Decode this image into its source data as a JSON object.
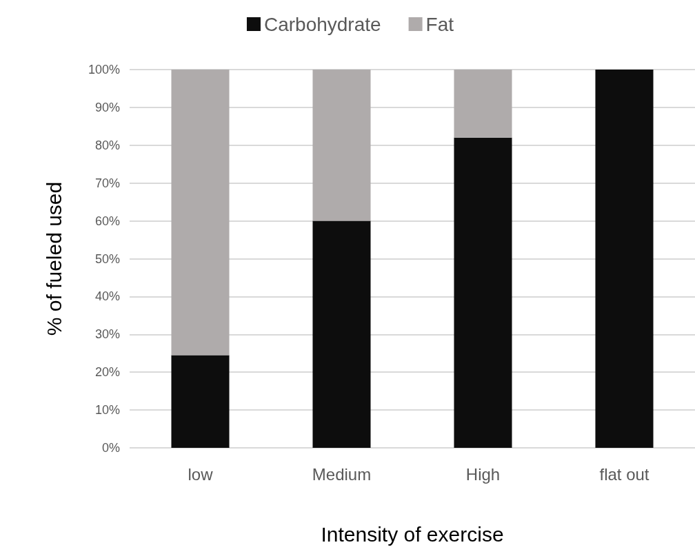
{
  "chart_data": {
    "type": "bar",
    "stacked": true,
    "xlabel": "Intensity of exercise",
    "ylabel": "% of fueled used",
    "categories": [
      "low",
      "Medium",
      "High",
      "flat out"
    ],
    "series": [
      {
        "name": "Carbohydrate",
        "color": "#0d0d0d",
        "values": [
          24.5,
          60,
          82,
          100
        ]
      },
      {
        "name": "Fat",
        "color": "#afabab",
        "values": [
          75.5,
          40,
          18,
          0
        ]
      }
    ],
    "ylim": [
      0,
      100
    ],
    "yticks": [
      {
        "value": 0,
        "label": "0%"
      },
      {
        "value": 10,
        "label": "10%"
      },
      {
        "value": 20,
        "label": "20%"
      },
      {
        "value": 30,
        "label": "30%"
      },
      {
        "value": 40,
        "label": "40%"
      },
      {
        "value": 50,
        "label": "50%"
      },
      {
        "value": 60,
        "label": "60%"
      },
      {
        "value": 70,
        "label": "70%"
      },
      {
        "value": 80,
        "label": "80%"
      },
      {
        "value": 90,
        "label": "90%"
      },
      {
        "value": 100,
        "label": "100%"
      }
    ],
    "grid": "y",
    "legend": "top"
  }
}
